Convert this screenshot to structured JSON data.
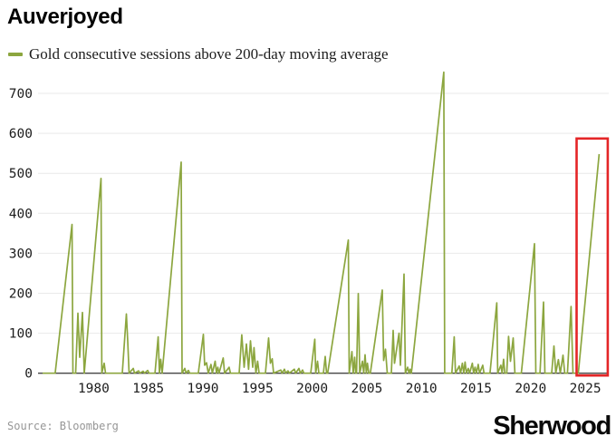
{
  "header": {
    "title": "Auverjoyed"
  },
  "legend": {
    "label": "Gold consecutive sessions above 200-day moving average"
  },
  "footer": {
    "source": "Source: Bloomberg",
    "brand": "Sherwood"
  },
  "chart_data": {
    "type": "line",
    "title": "Auverjoyed",
    "xlabel": "",
    "ylabel": "",
    "grid": "horizontal",
    "grid_color": "#e9e9e9",
    "axis_color": "#454545",
    "x_ticks": [
      1980,
      1985,
      1990,
      1995,
      2000,
      2005,
      2010,
      2015,
      2020,
      2025
    ],
    "y_ticks": [
      0,
      100,
      200,
      300,
      400,
      500,
      600,
      700
    ],
    "xlim": [
      1975.1,
      2027.2
    ],
    "ylim": [
      0,
      760
    ],
    "series": [
      {
        "name": "Gold consecutive sessions above 200-day moving average",
        "color": "#8CA63F",
        "points": [
          [
            1975.32,
            0
          ],
          [
            1976.48,
            0
          ],
          [
            1978.02,
            372
          ],
          [
            1978.1,
            0
          ],
          [
            1978.35,
            0
          ],
          [
            1978.56,
            150
          ],
          [
            1978.72,
            40
          ],
          [
            1978.97,
            152
          ],
          [
            1979.14,
            0
          ],
          [
            1980.67,
            487
          ],
          [
            1980.75,
            0
          ],
          [
            1980.96,
            25
          ],
          [
            1981.09,
            0
          ],
          [
            1982.62,
            0
          ],
          [
            1982.99,
            148
          ],
          [
            1983.12,
            80
          ],
          [
            1983.24,
            0
          ],
          [
            1983.62,
            12
          ],
          [
            1983.74,
            0
          ],
          [
            1984.11,
            6
          ],
          [
            1984.23,
            0
          ],
          [
            1984.53,
            5
          ],
          [
            1984.65,
            0
          ],
          [
            1984.94,
            7
          ],
          [
            1985.06,
            0
          ],
          [
            1985.61,
            0
          ],
          [
            1985.9,
            91
          ],
          [
            1986.02,
            0
          ],
          [
            1986.14,
            35
          ],
          [
            1986.27,
            0
          ],
          [
            1988.01,
            528
          ],
          [
            1988.09,
            0
          ],
          [
            1988.34,
            12
          ],
          [
            1988.46,
            0
          ],
          [
            1988.67,
            7
          ],
          [
            1988.79,
            0
          ],
          [
            1989.58,
            0
          ],
          [
            1990.04,
            97
          ],
          [
            1990.16,
            20
          ],
          [
            1990.33,
            26
          ],
          [
            1990.49,
            0
          ],
          [
            1990.74,
            22
          ],
          [
            1990.86,
            0
          ],
          [
            1991.12,
            30
          ],
          [
            1991.24,
            0
          ],
          [
            1991.36,
            15
          ],
          [
            1991.48,
            0
          ],
          [
            1991.86,
            38
          ],
          [
            1991.98,
            0
          ],
          [
            1992.4,
            15
          ],
          [
            1992.52,
            0
          ],
          [
            1993.32,
            0
          ],
          [
            1993.56,
            96
          ],
          [
            1993.77,
            15
          ],
          [
            1993.98,
            73
          ],
          [
            1994.18,
            10
          ],
          [
            1994.35,
            81
          ],
          [
            1994.56,
            15
          ],
          [
            1994.68,
            64
          ],
          [
            1994.85,
            0
          ],
          [
            1995.01,
            30
          ],
          [
            1995.14,
            0
          ],
          [
            1995.72,
            0
          ],
          [
            1996.01,
            88
          ],
          [
            1996.18,
            25
          ],
          [
            1996.34,
            36
          ],
          [
            1996.47,
            0
          ],
          [
            1997.13,
            8
          ],
          [
            1997.25,
            0
          ],
          [
            1997.46,
            10
          ],
          [
            1997.58,
            0
          ],
          [
            1997.79,
            6
          ],
          [
            1997.91,
            0
          ],
          [
            1998.37,
            10
          ],
          [
            1998.49,
            0
          ],
          [
            1998.79,
            12
          ],
          [
            1998.91,
            0
          ],
          [
            1999.12,
            8
          ],
          [
            1999.24,
            0
          ],
          [
            1999.87,
            0
          ],
          [
            2000.24,
            85
          ],
          [
            2000.32,
            0
          ],
          [
            2000.49,
            30
          ],
          [
            2000.61,
            0
          ],
          [
            2001.03,
            0
          ],
          [
            2001.19,
            42
          ],
          [
            2001.32,
            0
          ],
          [
            2001.42,
            0
          ],
          [
            2003.31,
            333
          ],
          [
            2003.39,
            0
          ],
          [
            2003.64,
            54
          ],
          [
            2003.76,
            0
          ],
          [
            2003.89,
            40
          ],
          [
            2003.98,
            0
          ],
          [
            2004.06,
            0
          ],
          [
            2004.22,
            199
          ],
          [
            2004.35,
            0
          ],
          [
            2004.6,
            30
          ],
          [
            2004.72,
            0
          ],
          [
            2004.84,
            46
          ],
          [
            2004.96,
            0
          ],
          [
            2005.06,
            25
          ],
          [
            2005.18,
            0
          ],
          [
            2005.32,
            0
          ],
          [
            2006.42,
            208
          ],
          [
            2006.54,
            32
          ],
          [
            2006.71,
            60
          ],
          [
            2006.87,
            0
          ],
          [
            2007.25,
            0
          ],
          [
            2007.41,
            107
          ],
          [
            2007.54,
            25
          ],
          [
            2007.95,
            100
          ],
          [
            2008.08,
            20
          ],
          [
            2008.41,
            248
          ],
          [
            2008.53,
            0
          ],
          [
            2008.74,
            15
          ],
          [
            2008.86,
            0
          ],
          [
            2008.96,
            10
          ],
          [
            2009.08,
            0
          ],
          [
            2012.05,
            753
          ],
          [
            2012.13,
            0
          ],
          [
            2012.79,
            0
          ],
          [
            2013.0,
            91
          ],
          [
            2013.12,
            0
          ],
          [
            2013.46,
            18
          ],
          [
            2013.58,
            0
          ],
          [
            2013.75,
            25
          ],
          [
            2013.87,
            0
          ],
          [
            2014.0,
            28
          ],
          [
            2014.12,
            0
          ],
          [
            2014.29,
            12
          ],
          [
            2014.41,
            0
          ],
          [
            2014.66,
            25
          ],
          [
            2014.78,
            0
          ],
          [
            2014.91,
            15
          ],
          [
            2015.03,
            0
          ],
          [
            2015.2,
            22
          ],
          [
            2015.32,
            0
          ],
          [
            2015.61,
            20
          ],
          [
            2015.73,
            0
          ],
          [
            2016.28,
            0
          ],
          [
            2016.9,
            176
          ],
          [
            2016.98,
            0
          ],
          [
            2017.27,
            20
          ],
          [
            2017.39,
            0
          ],
          [
            2017.52,
            35
          ],
          [
            2017.64,
            0
          ],
          [
            2017.81,
            0
          ],
          [
            2017.98,
            92
          ],
          [
            2018.15,
            30
          ],
          [
            2018.4,
            88
          ],
          [
            2018.56,
            0
          ],
          [
            2019.15,
            0
          ],
          [
            2020.35,
            324
          ],
          [
            2020.47,
            0
          ],
          [
            2020.85,
            0
          ],
          [
            2021.18,
            178
          ],
          [
            2021.3,
            0
          ],
          [
            2021.92,
            0
          ],
          [
            2022.13,
            68
          ],
          [
            2022.3,
            0
          ],
          [
            2022.54,
            34
          ],
          [
            2022.71,
            0
          ],
          [
            2022.96,
            45
          ],
          [
            2023.12,
            0
          ],
          [
            2023.37,
            0
          ],
          [
            2023.7,
            167
          ],
          [
            2023.87,
            0
          ],
          [
            2024.36,
            0
          ],
          [
            2026.27,
            548
          ]
        ]
      }
    ],
    "highlight_box": {
      "x0": 2024.2,
      "x1": 2027.05,
      "y0": 0,
      "y1": 587,
      "color": "#E42527"
    }
  }
}
